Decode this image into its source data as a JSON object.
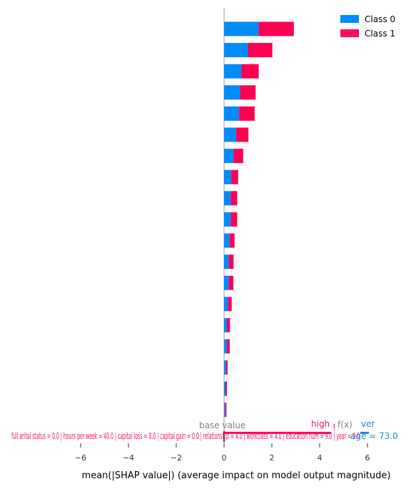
{
  "chart_data": {
    "type": "bar",
    "orientation": "horizontal",
    "stacked": true,
    "title": "",
    "xlabel": "mean(|SHAP value|) (average impact on model output magnitude)",
    "ylabel": "",
    "xlim": [
      -7.2,
      7.2
    ],
    "x_ticks": [
      "−6",
      "−4",
      "−2",
      "0",
      "2",
      "4",
      "6"
    ],
    "x_tick_values": [
      -6,
      -4,
      -2,
      0,
      2,
      4,
      6
    ],
    "legend_position": "top-right",
    "series": [
      {
        "name": "Class 0",
        "color": "#008bfb",
        "values": [
          1.45,
          1.0,
          0.73,
          0.67,
          0.63,
          0.5,
          0.4,
          0.3,
          0.28,
          0.28,
          0.23,
          0.2,
          0.2,
          0.16,
          0.12,
          0.12,
          0.08,
          0.06,
          0.05
        ]
      },
      {
        "name": "Class 1",
        "color": "#ff0051",
        "values": [
          1.47,
          1.02,
          0.72,
          0.65,
          0.65,
          0.52,
          0.4,
          0.29,
          0.27,
          0.27,
          0.21,
          0.2,
          0.19,
          0.16,
          0.13,
          0.12,
          0.07,
          0.06,
          0.05
        ]
      }
    ],
    "overlay_text": {
      "base_value": "base value",
      "fx": "f(x)",
      "higher": "high",
      "lower": "ver",
      "age_feature": "age = 73.0",
      "overlapping_features": "full arital status = 0.0 | hours per week = 40.0 | capital loss = 0.0 | capital gain = 0.0 | relationship = 4.0 | workclass = 4.0 | education num = 9.0 | year = 0.0"
    }
  }
}
